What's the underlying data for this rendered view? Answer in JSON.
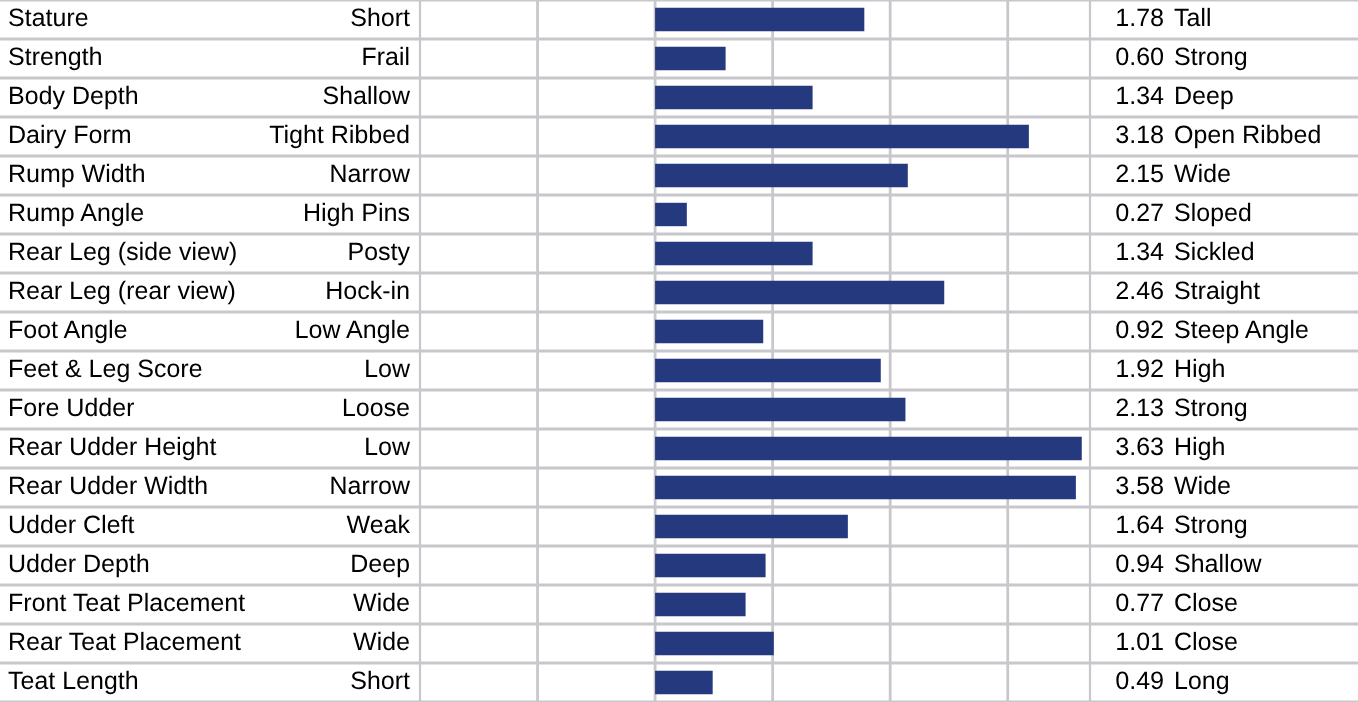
{
  "chart_data": {
    "type": "bar",
    "orientation": "horizontal",
    "categories": [
      "Stature",
      "Strength",
      "Body Depth",
      "Dairy Form",
      "Rump Width",
      "Rump Angle",
      "Rear Leg (side view)",
      "Rear Leg (rear view)",
      "Foot Angle",
      "Feet & Leg Score",
      "Fore Udder",
      "Rear Udder Height",
      "Rear Udder Width",
      "Udder Cleft",
      "Udder Depth",
      "Front Teat Placement",
      "Rear Teat Placement",
      "Teat Length"
    ],
    "values": [
      1.78,
      0.6,
      1.34,
      3.18,
      2.15,
      0.27,
      1.34,
      2.46,
      0.92,
      1.92,
      2.13,
      3.63,
      3.58,
      1.64,
      0.94,
      0.77,
      1.01,
      0.49
    ],
    "value_labels": [
      "1.78",
      "0.60",
      "1.34",
      "3.18",
      "2.15",
      "0.27",
      "1.34",
      "2.46",
      "0.92",
      "1.92",
      "2.13",
      "3.63",
      "3.58",
      "1.64",
      "0.94",
      "0.77",
      "1.01",
      "0.49"
    ],
    "color": "#253a7e",
    "xlim": [
      -2,
      3.7
    ],
    "xticks": [
      {
        "value": -1,
        "label": null
      },
      {
        "value": 0,
        "label": null
      },
      {
        "value": 1,
        "label": null
      },
      {
        "value": 2,
        "label": null
      },
      {
        "value": 3,
        "label": null
      }
    ],
    "grid": "x",
    "tick_labels": "y",
    "annotations": [
      "Short",
      "Frail",
      "Shallow",
      "Tight Ribbed",
      "Narrow",
      "High Pins",
      "Posty",
      "Hock-in",
      "Low Angle",
      "Low",
      "Loose",
      "Low",
      "Narrow",
      "Weak",
      "Deep",
      "Wide",
      "Wide",
      "Short",
      "Tall",
      "Strong",
      "Deep",
      "Open Ribbed",
      "Wide",
      "Sloped",
      "Sickled",
      "Straight",
      "Steep Angle",
      "High",
      "Strong",
      "High",
      "Wide",
      "Strong",
      "Shallow",
      "Close",
      "Close",
      "Long"
    ]
  }
}
